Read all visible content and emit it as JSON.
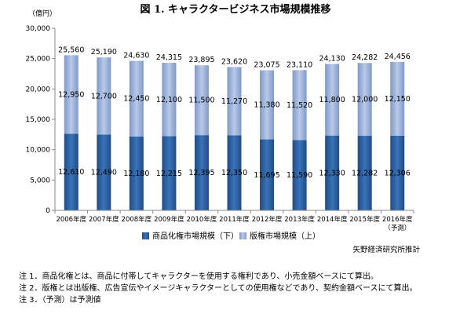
{
  "chart_data": {
    "type": "bar",
    "stacked": true,
    "title": "図 1. キャラクタービジネス市場規模推移",
    "yunit": "（億円）",
    "ylim": [
      0,
      30000
    ],
    "yticks": [
      0,
      5000,
      10000,
      15000,
      20000,
      25000,
      30000
    ],
    "ytick_labels": [
      "0",
      "5,000",
      "10,000",
      "15,000",
      "20,000",
      "25,000",
      "30,000"
    ],
    "categories": [
      "2006年度",
      "2007年度",
      "2008年度",
      "2009年度",
      "2010年度",
      "2011年度",
      "2012年度",
      "2013年度",
      "2014年度",
      "2015年度",
      "2016年度"
    ],
    "category_sublabels": [
      "",
      "",
      "",
      "",
      "",
      "",
      "",
      "",
      "",
      "",
      "（予測）"
    ],
    "series": [
      {
        "name": "商品化権市場規模（下）",
        "values": [
          12610,
          12490,
          12180,
          12215,
          12395,
          12350,
          11695,
          11590,
          12330,
          12282,
          12306
        ],
        "labels": [
          "12,610",
          "12,490",
          "12,180",
          "12,215",
          "12,395",
          "12,350",
          "11,695",
          "11,590",
          "12,330",
          "12,282",
          "12,306"
        ]
      },
      {
        "name": "版権市場規模（上）",
        "values": [
          12950,
          12700,
          12450,
          12100,
          11500,
          11270,
          11380,
          11520,
          11800,
          12000,
          12150
        ],
        "labels": [
          "12,950",
          "12,700",
          "12,450",
          "12,100",
          "11,500",
          "11,270",
          "11,380",
          "11,520",
          "11,800",
          "12,000",
          "12,150"
        ]
      }
    ],
    "totals": [
      25560,
      25190,
      24630,
      24315,
      23895,
      23620,
      23075,
      23110,
      24130,
      24282,
      24456
    ],
    "total_labels": [
      "25,560",
      "25,190",
      "24,630",
      "24,315",
      "23,895",
      "23,620",
      "23,075",
      "23,110",
      "24,130",
      "24,282",
      "24,456"
    ],
    "legend_position": "bottom",
    "grid": false,
    "colors": {
      "lower": "#2f64a6",
      "upper": "#9fb4db"
    }
  },
  "source": "矢野経済研究所推計",
  "notes": [
    "注 1．商品化権とは、商品に付帯してキャラクターを使用する権利であり、小売金額ベースにて算出。",
    "注 2．版権とは出版権、広告宣伝やイメージキャラクターとしての使用権などであり、契約金額ベースにて算出。",
    "注 3．（予測）は予測値"
  ]
}
